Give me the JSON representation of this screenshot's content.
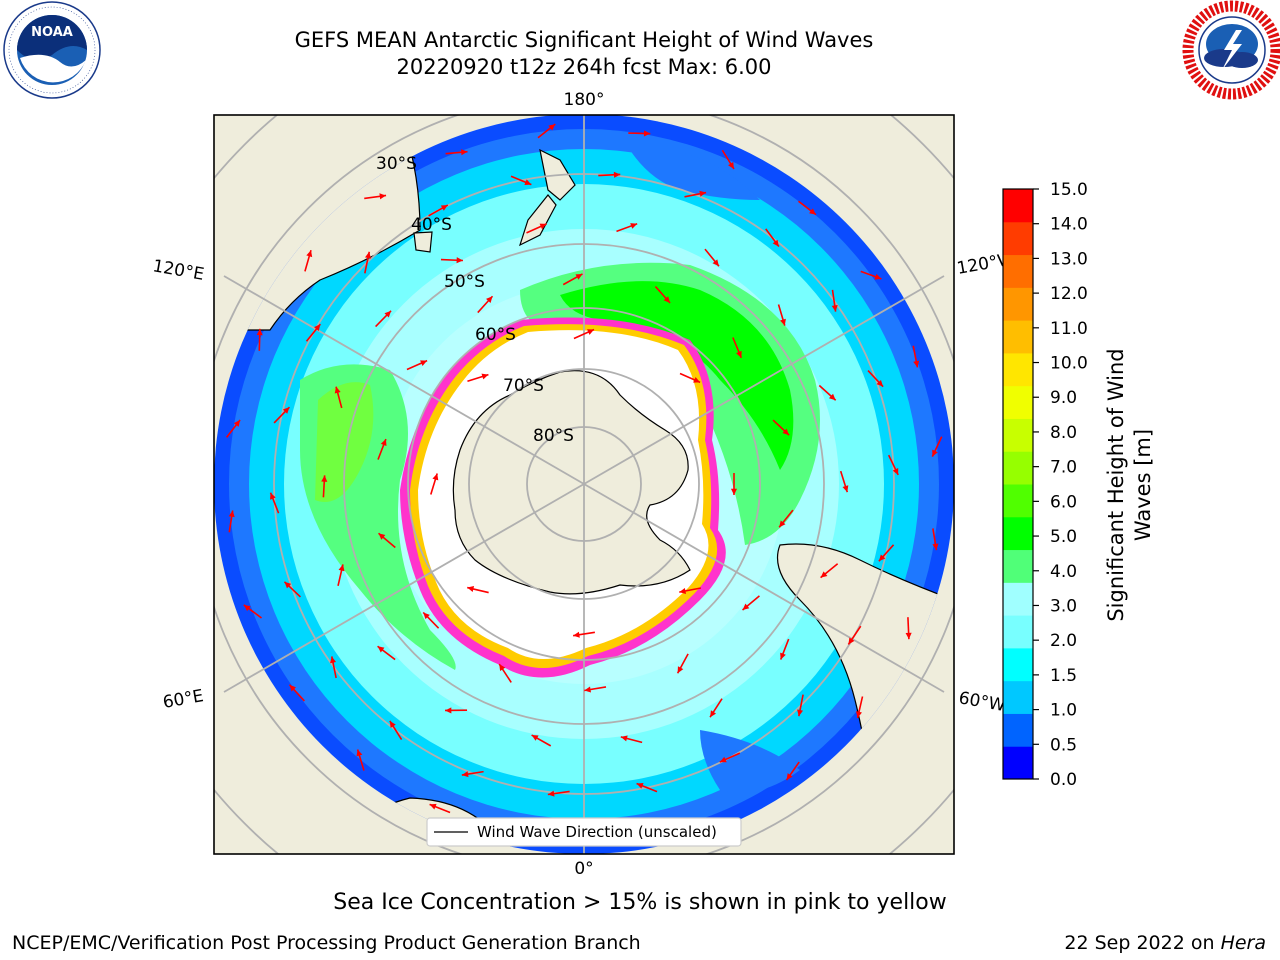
{
  "header": {
    "title_line1": "GEFS MEAN Antarctic Significant Height of Wind Waves",
    "title_line2": "20220920 t12z 264h fcst   Max: 6.00"
  },
  "logos": {
    "left": {
      "icon": "noaa-logo-icon",
      "text": "NOAA",
      "ring_text": "NATIONAL OCEANIC AND ATMOSPHERIC ADMINISTRATION · U.S. DEPARTMENT OF COMMERCE"
    },
    "right": {
      "icon": "nws-logo-icon",
      "ring_text": "NATIONAL WEATHER SERVICE"
    }
  },
  "map": {
    "projection": "south polar stereographic",
    "lon_labels": {
      "top": "180°",
      "bottom": "0°",
      "left_upper": "120°E",
      "left_lower": "60°E",
      "right_upper": "120°W",
      "right_lower": "60°W"
    },
    "lat_labels": [
      "30°S",
      "40°S",
      "50°S",
      "60°S",
      "70°S",
      "80°S"
    ],
    "legend": "Wind Wave Direction (unscaled)",
    "colors": {
      "land": "#efeddc",
      "ice": "#ffffff",
      "ice_edge": [
        "#ff00ff",
        "#ff66cc",
        "#ffcc00"
      ],
      "arrows": "#ff0000",
      "grid": "#b0b0b0"
    }
  },
  "colorbar": {
    "label_line1": "Significant Height of Wind",
    "label_line2": "Waves [m]",
    "ticks": [
      "0.0",
      "0.5",
      "1.0",
      "1.5",
      "2.0",
      "3.0",
      "4.0",
      "5.0",
      "6.0",
      "7.0",
      "8.0",
      "9.0",
      "10.0",
      "11.0",
      "12.0",
      "13.0",
      "14.0",
      "15.0"
    ],
    "colors": [
      "#0000ff",
      "#0064ff",
      "#00c8ff",
      "#00ffff",
      "#78ffff",
      "#a0ffff",
      "#50ff78",
      "#00ff00",
      "#50ff00",
      "#96ff00",
      "#c8ff00",
      "#f0ff00",
      "#ffe600",
      "#ffbe00",
      "#ff9600",
      "#ff6e00",
      "#ff3c00",
      "#ff0000"
    ]
  },
  "footer": {
    "caption": "Sea Ice Concentration > 15% is shown in pink to yellow",
    "credit_left": "NCEP/EMC/Verification Post Processing Product Generation Branch",
    "credit_right_date": "22 Sep 2022 on ",
    "credit_right_host": "Hera"
  }
}
